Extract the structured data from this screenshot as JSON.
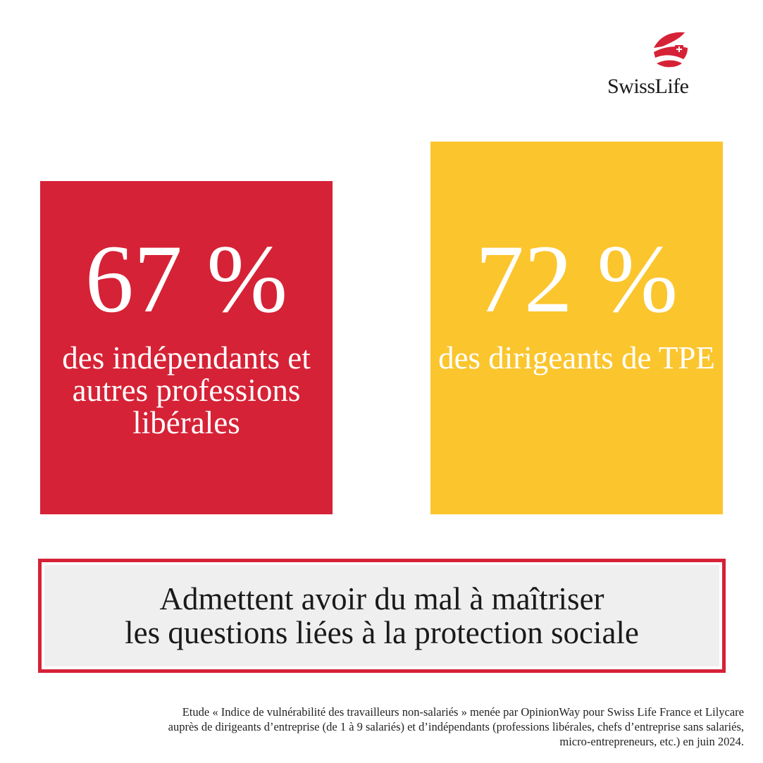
{
  "brand": {
    "name": "SwissLife",
    "colors": {
      "red": "#d62236",
      "yellow": "#fbc52d",
      "box_background": "#efefef",
      "text_dark": "#1a1a1a"
    }
  },
  "chart_data": {
    "type": "table",
    "title": "",
    "unit": "%",
    "items": [
      {
        "value": 67,
        "display": "67 %",
        "label": "des indépendants et autres professions libérales",
        "color": "#d62236"
      },
      {
        "value": 72,
        "display": "72 %",
        "label": "des dirigeants de TPE",
        "color": "#fbc52d"
      }
    ]
  },
  "conclusion": {
    "line1": "Admettent avoir du mal à maîtriser",
    "line2": "les questions liées à la protection sociale"
  },
  "footnote": {
    "line1": "Etude « Indice de vulnérabilité des travailleurs non-salariés » menée par OpinionWay pour Swiss Life France et Lilycare",
    "line2": "auprès de dirigeants d’entreprise (de 1 à 9 salariés) et d’indépendants (professions libérales, chefs d’entreprise sans salariés,",
    "line3": "micro-entrepreneurs, etc.) en juin 2024."
  }
}
